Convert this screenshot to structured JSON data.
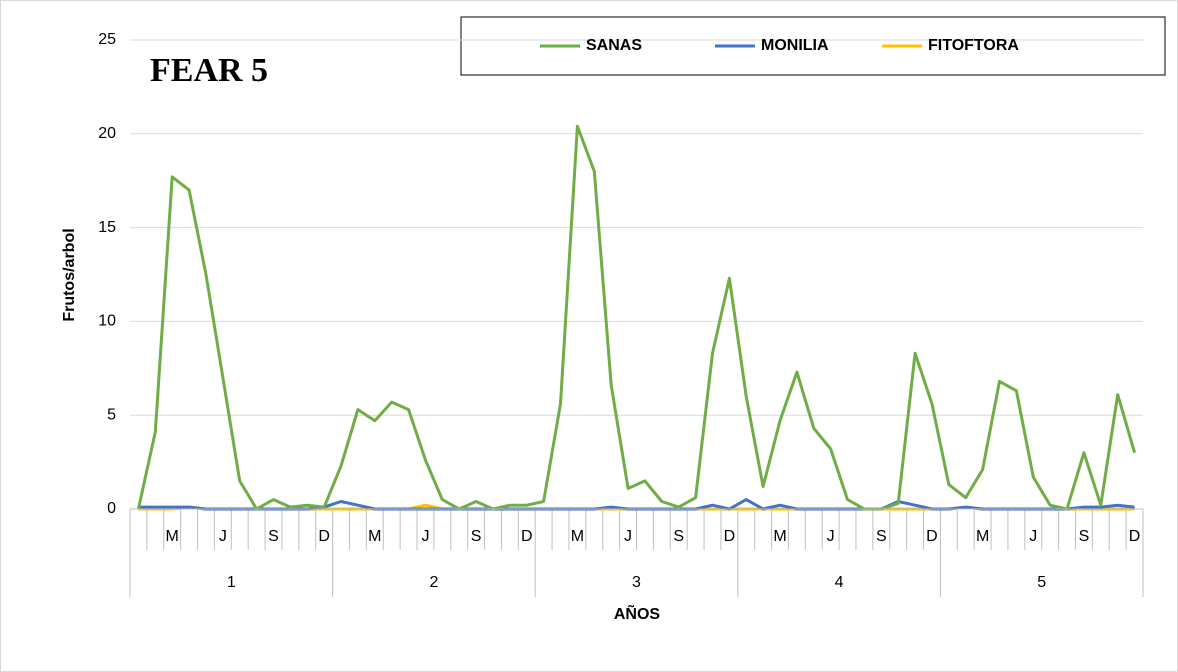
{
  "chart_data": {
    "type": "line",
    "title": "FEAR 5",
    "x_label": "AÑOS",
    "y_label": "Frutos/arbol",
    "categories": [
      null,
      null,
      "M",
      null,
      null,
      "J",
      null,
      null,
      "S",
      null,
      null,
      "D",
      null,
      null,
      "M",
      null,
      null,
      "J",
      null,
      null,
      "S",
      null,
      null,
      "D",
      null,
      null,
      "M",
      null,
      null,
      "J",
      null,
      null,
      "S",
      null,
      null,
      "D",
      null,
      null,
      "M",
      null,
      null,
      "J",
      null,
      null,
      "S",
      null,
      null,
      "D",
      null,
      null,
      "M",
      null,
      null,
      "J",
      null,
      null,
      "S",
      null,
      null,
      "D"
    ],
    "groups": [
      "1",
      "2",
      "3",
      "4",
      "5"
    ],
    "series": [
      {
        "name": "SANAS",
        "color": "#70ad47",
        "values": [
          0,
          4.1,
          17.7,
          17.0,
          12.5,
          7.0,
          1.5,
          0,
          0.5,
          0.1,
          0.2,
          0.1,
          2.3,
          5.3,
          4.7,
          5.7,
          5.3,
          2.6,
          0.5,
          0,
          0.4,
          0,
          0.2,
          0.2,
          0.4,
          5.6,
          20.4,
          18.0,
          6.6,
          1.1,
          1.5,
          0.4,
          0.1,
          0.6,
          8.3,
          12.3,
          6.0,
          1.2,
          4.7,
          7.3,
          4.3,
          3.2,
          0.5,
          0,
          0,
          0.3,
          8.3,
          5.6,
          1.3,
          0.6,
          2.1,
          6.8,
          6.3,
          1.7,
          0.2,
          0,
          3.0,
          0.2,
          6.1,
          3.0
        ]
      },
      {
        "name": "MONILIA",
        "color": "#4472c4",
        "values": [
          0.1,
          0.1,
          0.1,
          0.1,
          0,
          0,
          0,
          0,
          0,
          0,
          0,
          0.1,
          0.4,
          0.2,
          0,
          0,
          0,
          0,
          0,
          0,
          0,
          0,
          0,
          0,
          0,
          0,
          0,
          0,
          0.1,
          0,
          0,
          0,
          0,
          0,
          0.2,
          0,
          0.5,
          0,
          0.2,
          0,
          0,
          0,
          0,
          0,
          0,
          0.4,
          0.2,
          0,
          0,
          0.1,
          0,
          0,
          0,
          0,
          0,
          0,
          0.1,
          0.1,
          0.2,
          0.1
        ]
      },
      {
        "name": "FITOFTORA",
        "color": "#ffc000",
        "values": [
          0,
          0,
          0,
          0.1,
          0,
          0,
          0,
          0,
          0,
          0,
          0,
          0,
          0,
          0,
          0,
          0,
          0,
          0.2,
          0,
          0,
          0,
          0,
          0,
          0,
          0,
          0,
          0,
          0,
          0,
          0,
          0,
          0,
          0,
          0,
          0,
          0,
          0,
          0,
          0,
          0,
          0,
          0,
          0,
          0,
          0,
          0,
          0,
          0,
          0,
          0.1,
          0,
          0,
          0,
          0,
          0,
          0,
          0,
          0,
          0,
          0
        ]
      }
    ],
    "ylim": [
      0,
      25
    ],
    "yticks": [
      0,
      5,
      10,
      15,
      20,
      25
    ],
    "grid": true,
    "legend": "top"
  }
}
